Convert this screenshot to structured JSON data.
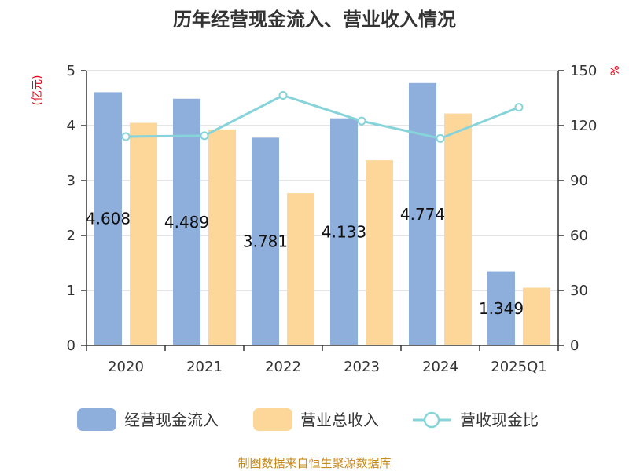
{
  "chart_data": {
    "type": "bar",
    "title": "历年经营现金流入、营业收入情况",
    "categories": [
      "2020",
      "2021",
      "2022",
      "2023",
      "2024",
      "2025Q1"
    ],
    "y_left": {
      "unit": "(亿元)",
      "range": [
        0,
        5
      ],
      "ticks": [
        "0",
        "1",
        "2",
        "3",
        "4",
        "5"
      ]
    },
    "y_right": {
      "unit": "%",
      "range": [
        0,
        150
      ],
      "ticks": [
        "0",
        "30",
        "60",
        "90",
        "120",
        "150"
      ]
    },
    "grid": true,
    "legend_position": "bottom",
    "series": [
      {
        "name": "经营现金流入",
        "kind": "bar",
        "axis": "left",
        "color": "#8eaedb",
        "values": [
          4.608,
          4.489,
          3.781,
          4.133,
          4.774,
          1.349
        ],
        "labels": [
          "4.608",
          "4.489",
          "3.781",
          "4.133",
          "4.774",
          "1.349"
        ]
      },
      {
        "name": "营业总收入",
        "kind": "bar",
        "axis": "left",
        "color": "#fdd79a",
        "values": [
          4.05,
          3.93,
          2.77,
          3.37,
          4.22,
          1.05
        ]
      },
      {
        "name": "营收现金比",
        "kind": "line",
        "axis": "right",
        "color": "#86d4d9",
        "values": [
          114,
          114.5,
          136.5,
          122.5,
          113,
          130
        ]
      }
    ]
  },
  "footer": {
    "source": "制图数据来自恒生聚源数据库"
  }
}
